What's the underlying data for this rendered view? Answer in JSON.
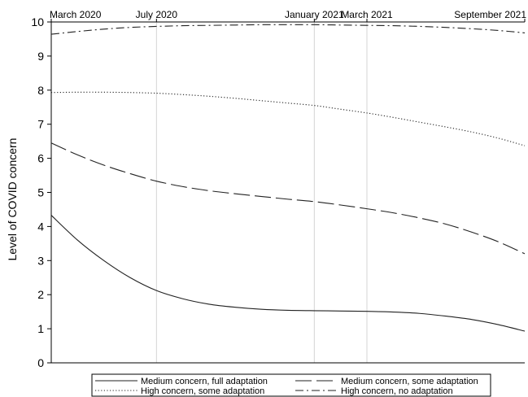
{
  "chart_data": {
    "type": "line",
    "title": "",
    "xlabel": "",
    "ylabel": "Level of COVID concern",
    "xlim": [
      "2020-03",
      "2021-09"
    ],
    "ylim": [
      0,
      10
    ],
    "yticks": [
      0,
      1,
      2,
      3,
      4,
      5,
      6,
      7,
      8,
      9,
      10
    ],
    "xticks": [
      {
        "label": "March 2020",
        "month": "2020-03"
      },
      {
        "label": "July 2020",
        "month": "2020-07"
      },
      {
        "label": "January 2021",
        "month": "2021-01"
      },
      {
        "label": "March 2021",
        "month": "2021-03"
      },
      {
        "label": "September 2021",
        "month": "2021-09"
      }
    ],
    "x_axis_position": "top",
    "grid": "vertical lines at July 2020, January 2021, March 2021",
    "legend_position": "bottom",
    "series": [
      {
        "name": "Medium concern, full adaptation",
        "dash": "solid",
        "x": [
          "2020-03",
          "2020-04",
          "2020-05",
          "2020-06",
          "2020-07",
          "2020-08",
          "2020-09",
          "2020-10",
          "2020-11",
          "2020-12",
          "2021-01",
          "2021-02",
          "2021-03",
          "2021-04",
          "2021-05",
          "2021-06",
          "2021-07",
          "2021-08",
          "2021-09"
        ],
        "values": [
          4.33,
          3.6,
          3.0,
          2.5,
          2.12,
          1.88,
          1.72,
          1.63,
          1.57,
          1.54,
          1.53,
          1.52,
          1.51,
          1.49,
          1.45,
          1.37,
          1.27,
          1.12,
          0.93
        ]
      },
      {
        "name": "Medium concern, some adaptation",
        "dash": "long-dash",
        "x": [
          "2020-03",
          "2020-04",
          "2020-05",
          "2020-06",
          "2020-07",
          "2020-08",
          "2020-09",
          "2020-10",
          "2020-11",
          "2020-12",
          "2021-01",
          "2021-02",
          "2021-03",
          "2021-04",
          "2021-05",
          "2021-06",
          "2021-07",
          "2021-08",
          "2021-09"
        ],
        "values": [
          6.45,
          6.1,
          5.8,
          5.55,
          5.33,
          5.17,
          5.05,
          4.96,
          4.88,
          4.8,
          4.73,
          4.63,
          4.52,
          4.4,
          4.25,
          4.07,
          3.83,
          3.55,
          3.2
        ]
      },
      {
        "name": "High concern, some adaptation",
        "dash": "dotted",
        "x": [
          "2020-03",
          "2020-04",
          "2020-05",
          "2020-06",
          "2020-07",
          "2020-08",
          "2020-09",
          "2020-10",
          "2020-11",
          "2020-12",
          "2021-01",
          "2021-02",
          "2021-03",
          "2021-04",
          "2021-05",
          "2021-06",
          "2021-07",
          "2021-08",
          "2021-09"
        ],
        "values": [
          7.93,
          7.94,
          7.94,
          7.93,
          7.91,
          7.87,
          7.82,
          7.76,
          7.69,
          7.62,
          7.55,
          7.44,
          7.33,
          7.2,
          7.06,
          6.92,
          6.77,
          6.59,
          6.37
        ]
      },
      {
        "name": "High concern, no adaptation",
        "dash": "dash-dot",
        "x": [
          "2020-03",
          "2020-04",
          "2020-05",
          "2020-06",
          "2020-07",
          "2020-08",
          "2020-09",
          "2020-10",
          "2020-11",
          "2020-12",
          "2021-01",
          "2021-02",
          "2021-03",
          "2021-04",
          "2021-05",
          "2021-06",
          "2021-07",
          "2021-08",
          "2021-09"
        ],
        "values": [
          9.64,
          9.72,
          9.79,
          9.84,
          9.87,
          9.89,
          9.9,
          9.91,
          9.92,
          9.92,
          9.92,
          9.91,
          9.9,
          9.89,
          9.87,
          9.84,
          9.8,
          9.75,
          9.68
        ]
      }
    ]
  }
}
